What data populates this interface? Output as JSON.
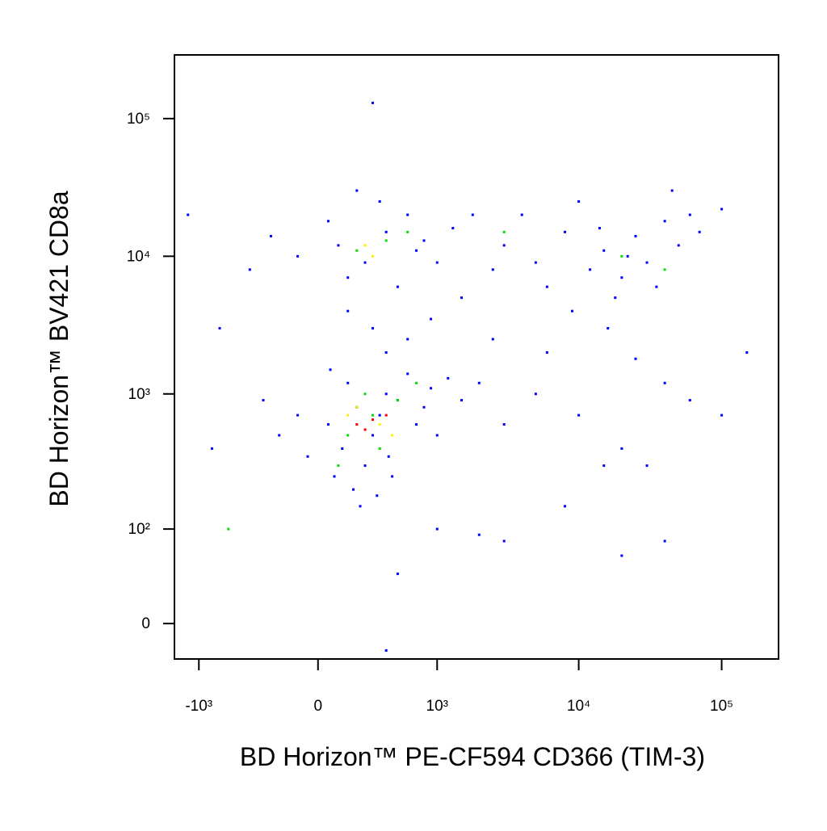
{
  "chart_data": {
    "type": "scatter",
    "xlabel": "BD Horizon™ PE-CF594 CD366 (TIM-3)",
    "ylabel": "BD Horizon™ BV421 CD8a",
    "xscale": "biexponential",
    "yscale": "biexponential",
    "xlim": [
      -1500,
      250000
    ],
    "ylim": [
      -27,
      290000
    ],
    "xticks": [
      {
        "value": -1000,
        "label": "-10³"
      },
      0,
      {
        "value": 1000,
        "label": "10³"
      },
      {
        "value": 10000,
        "label": "10⁴"
      },
      {
        "value": 100000,
        "label": "10⁵"
      }
    ],
    "yticks": [
      0,
      {
        "value": 100,
        "label": "10²"
      },
      {
        "value": 1000,
        "label": "10³"
      },
      {
        "value": 10000,
        "label": "10⁴"
      },
      {
        "value": 100000,
        "label": "10⁵"
      }
    ],
    "series": [
      {
        "color": "#0000ff",
        "x": [
          50,
          120,
          200,
          300,
          -100,
          400,
          250,
          150,
          350,
          500,
          80,
          600,
          -200,
          700,
          900,
          180,
          420,
          60,
          800,
          1200,
          1500,
          2000,
          -300,
          220,
          330,
          450,
          -50,
          1000,
          100,
          250,
          400,
          -100,
          600,
          150,
          800,
          350,
          -250,
          1000,
          50,
          500,
          1300,
          200,
          700,
          1800,
          -400,
          300,
          600,
          150,
          900,
          1500,
          400,
          2500,
          3000,
          5000,
          8000,
          12000,
          15000,
          20000,
          25000,
          30000,
          40000,
          50000,
          60000,
          4000,
          6000,
          10000,
          18000,
          35000,
          70000,
          100000,
          2500,
          14000,
          22000,
          45000,
          9000,
          16000,
          5000,
          10000,
          20000,
          30000,
          40000,
          3000,
          15000,
          60000,
          100000,
          8000,
          20000,
          3000,
          1000,
          500,
          150000,
          -800,
          -1200,
          -700,
          2000,
          40000,
          6000,
          25000,
          400,
          300
        ],
        "y": [
          600,
          400,
          800,
          500,
          700,
          1000,
          300,
          1200,
          700,
          900,
          250,
          1400,
          500,
          600,
          1100,
          200,
          350,
          1500,
          800,
          1300,
          900,
          1200,
          900,
          150,
          180,
          250,
          350,
          500,
          12000,
          9000,
          15000,
          10000,
          20000,
          7000,
          13000,
          25000,
          14000,
          9000,
          18000,
          6000,
          16000,
          30000,
          11000,
          20000,
          8000,
          3000,
          2500,
          4000,
          3500,
          5000,
          2000,
          2500,
          12000,
          9000,
          15000,
          8000,
          11000,
          7000,
          14000,
          9000,
          18000,
          12000,
          20000,
          20000,
          6000,
          25000,
          5000,
          6000,
          15000,
          22000,
          8000,
          16000,
          10000,
          30000,
          4000,
          3000,
          1000,
          700,
          400,
          300,
          1200,
          600,
          300,
          900,
          700,
          150,
          60,
          80,
          100,
          40,
          2000,
          400,
          20000,
          3000,
          90,
          80,
          2000,
          1800,
          -20,
          130000
        ]
      },
      {
        "color": "#00dd00",
        "x": [
          200,
          400,
          300,
          150,
          500,
          100,
          700,
          250,
          20000,
          40000,
          600,
          -600,
          3000,
          350
        ],
        "y": [
          11000,
          13000,
          700,
          500,
          900,
          300,
          1200,
          1000,
          10000,
          8000,
          15000,
          100,
          15000,
          400
        ]
      },
      {
        "color": "#ffee00",
        "x": [
          250,
          350,
          200,
          450,
          300,
          150
        ],
        "y": [
          12000,
          600,
          800,
          500,
          10000,
          700
        ]
      },
      {
        "color": "#ff0000",
        "x": [
          300,
          250,
          400,
          200
        ],
        "y": [
          650,
          550,
          700,
          600
        ]
      }
    ]
  }
}
